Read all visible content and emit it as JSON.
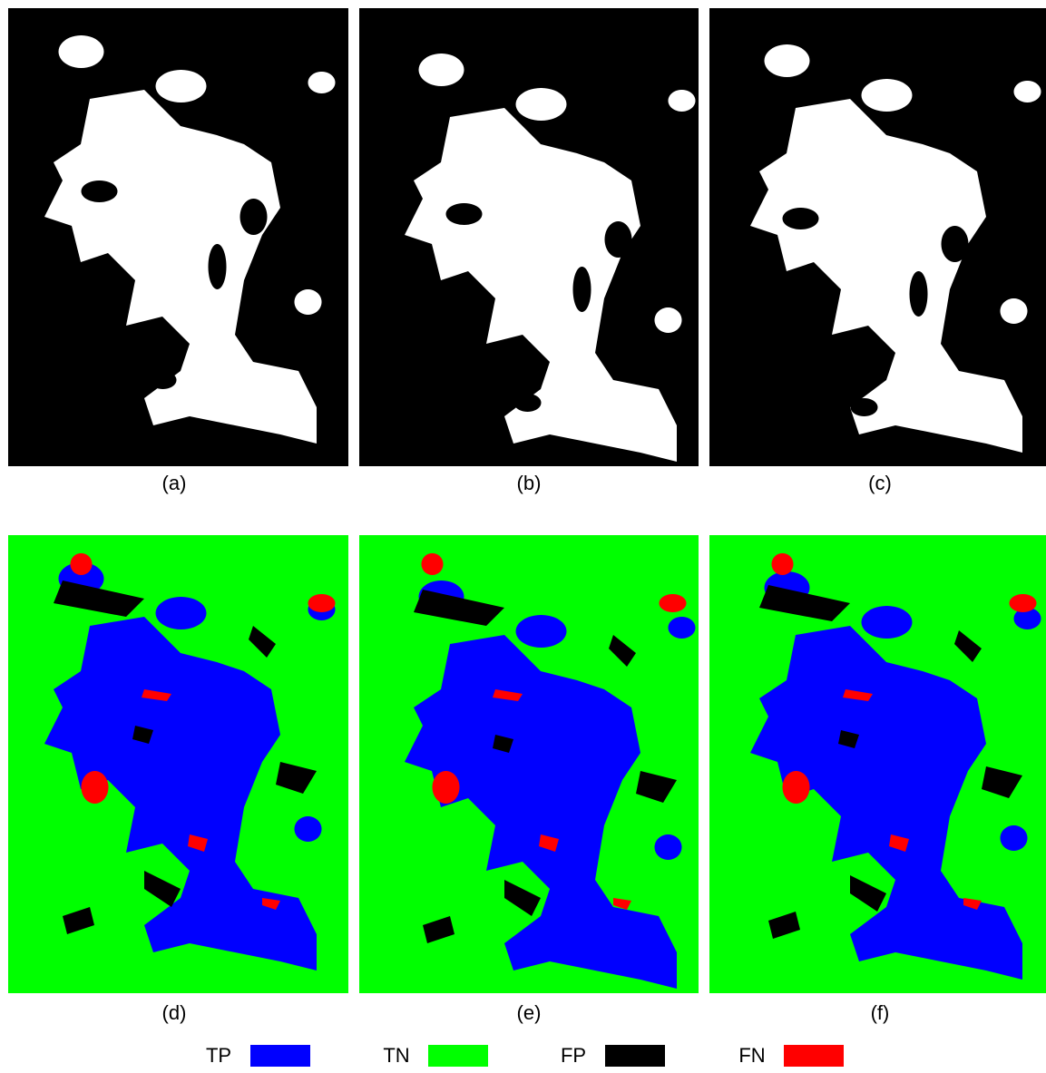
{
  "panels": [
    {
      "label": "(a)"
    },
    {
      "label": "(b)"
    },
    {
      "label": "(c)"
    },
    {
      "label": "(d)"
    },
    {
      "label": "(e)"
    },
    {
      "label": "(f)"
    }
  ],
  "legend": [
    {
      "label": "TP",
      "color": "#0000ff"
    },
    {
      "label": "TN",
      "color": "#00ff00"
    },
    {
      "label": "FP",
      "color": "#000000"
    },
    {
      "label": "FN",
      "color": "#ff0000"
    }
  ]
}
